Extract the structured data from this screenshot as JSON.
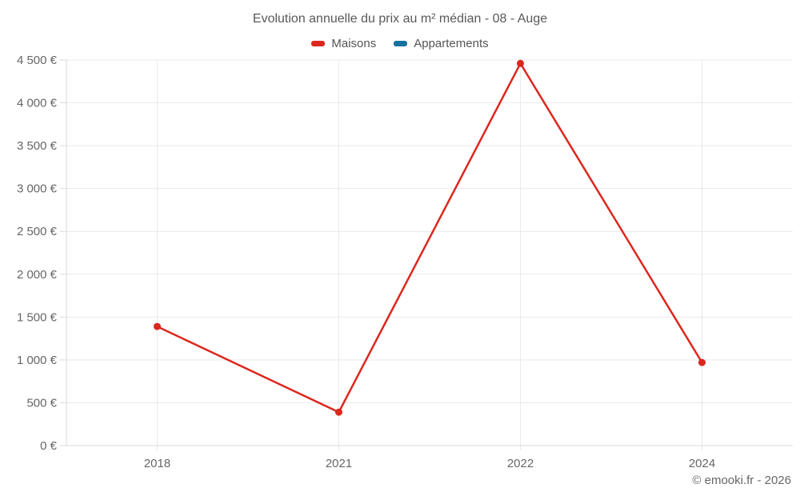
{
  "header": {
    "title": "Evolution annuelle du prix au m² médian - 08 - Auge"
  },
  "legend": [
    {
      "label": "Maisons",
      "color": "#dc271e"
    },
    {
      "label": "Appartements",
      "color": "#15729f"
    }
  ],
  "footer": {
    "credit": "© emooki.fr - 2026"
  },
  "colors": {
    "gridline": "#e9e9e9",
    "axis": "#d9d9d9",
    "tick_text": "#666666"
  },
  "chart_data": {
    "type": "line",
    "title": "Evolution annuelle du prix au m² médian - 08 - Auge",
    "categories": [
      "2018",
      "2021",
      "2022",
      "2024"
    ],
    "series": [
      {
        "name": "Maisons",
        "color": "#dc271e",
        "values": [
          1390,
          390,
          4460,
          970
        ]
      },
      {
        "name": "Appartements",
        "color": "#15729f",
        "values": []
      }
    ],
    "xlabel": "",
    "ylabel": "",
    "ylim": [
      0,
      4500
    ],
    "ytick_step": 500,
    "ytick_suffix": " €",
    "grid": true,
    "legend_position": "top",
    "annotations": [
      "© emooki.fr - 2026"
    ]
  }
}
